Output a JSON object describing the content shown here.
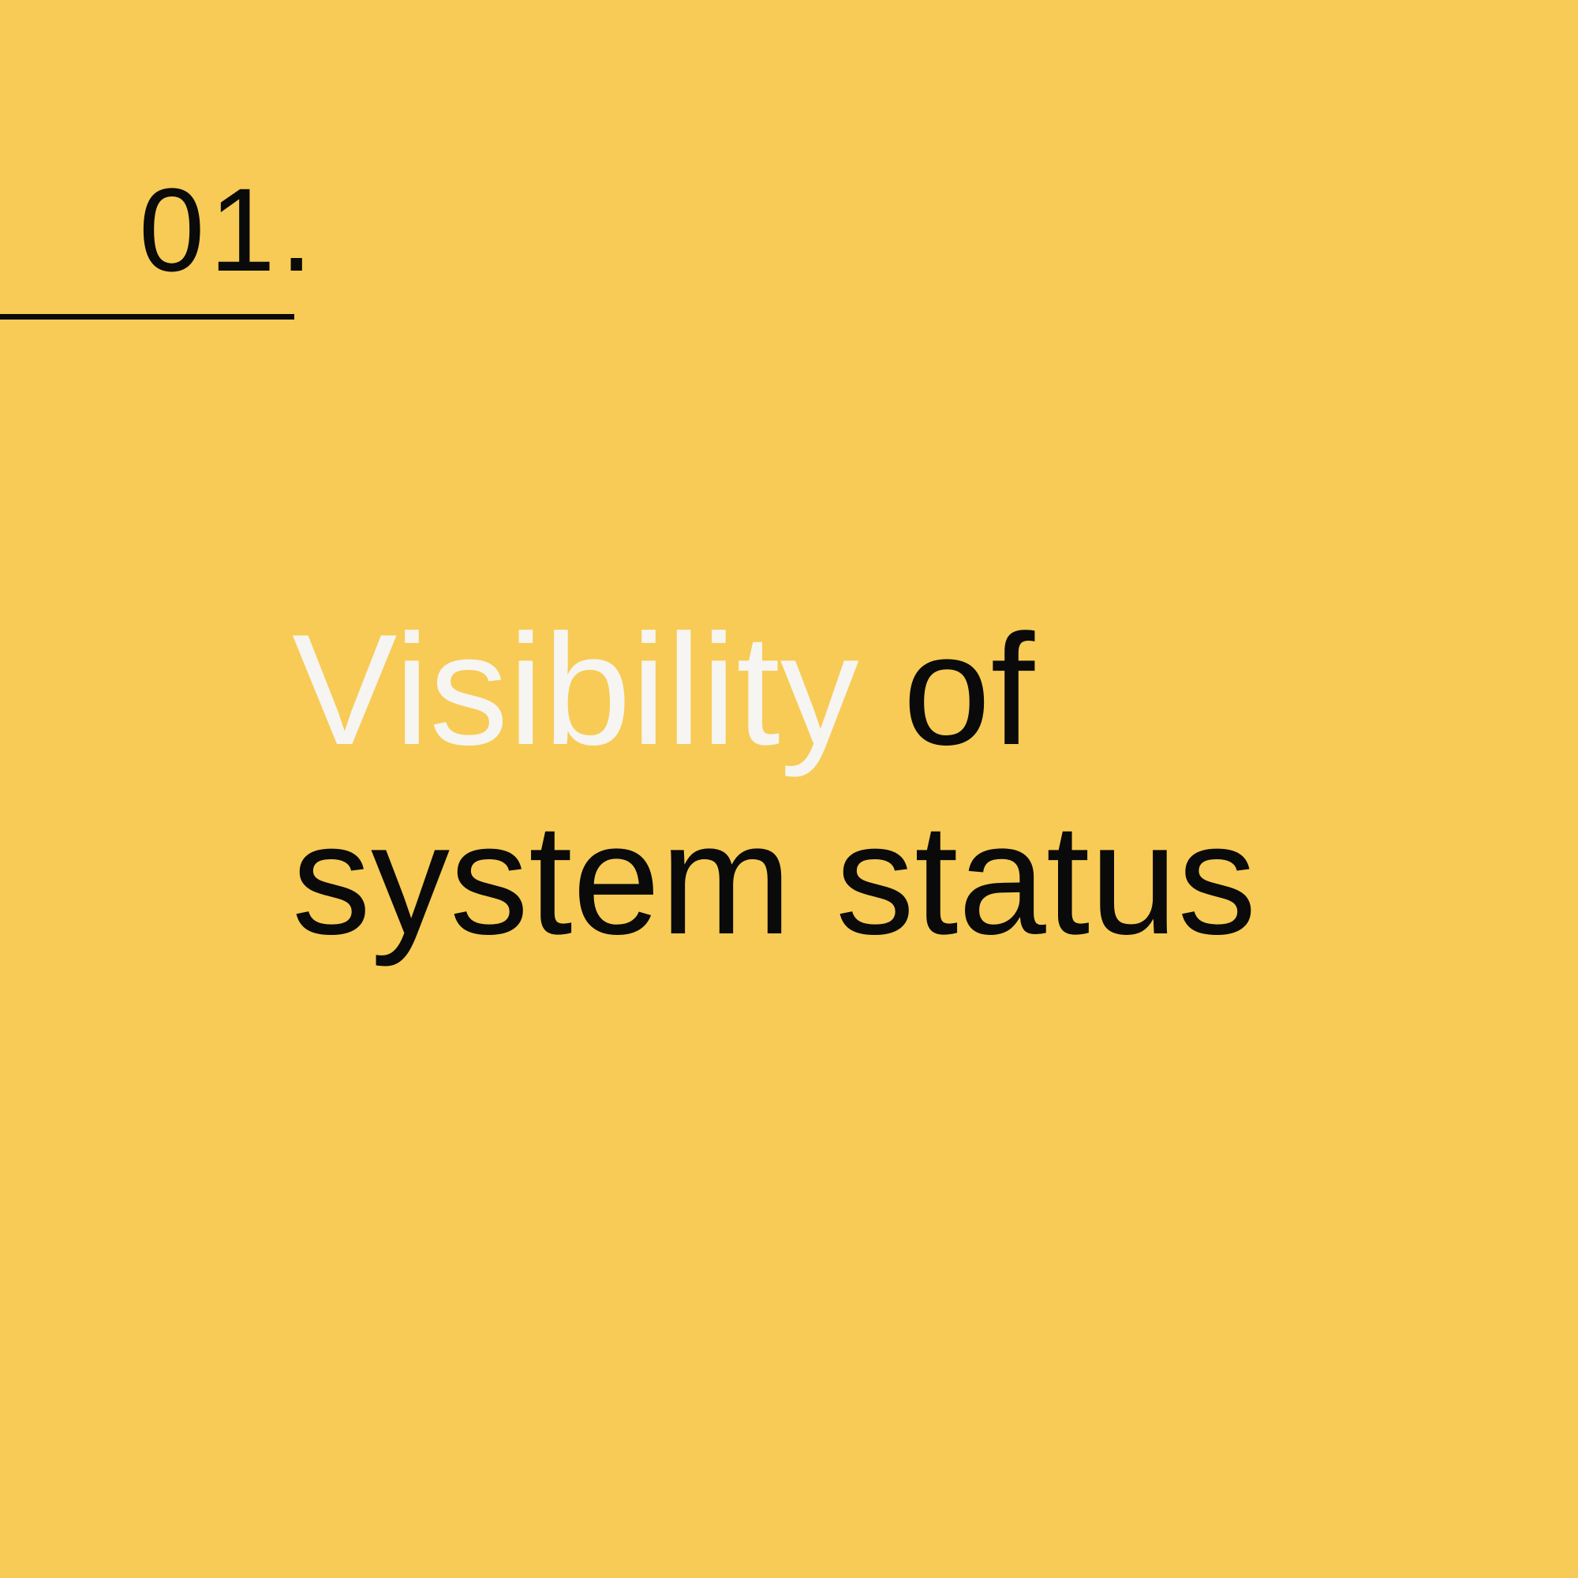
{
  "slide": {
    "number": "01.",
    "title_line1_accent": "Visibility",
    "title_line1_rest": " of",
    "title_line2": "system status"
  },
  "colors": {
    "background": "#F7CB55",
    "text": "#0a0a0a",
    "accent_text": "#F6F5F2"
  }
}
